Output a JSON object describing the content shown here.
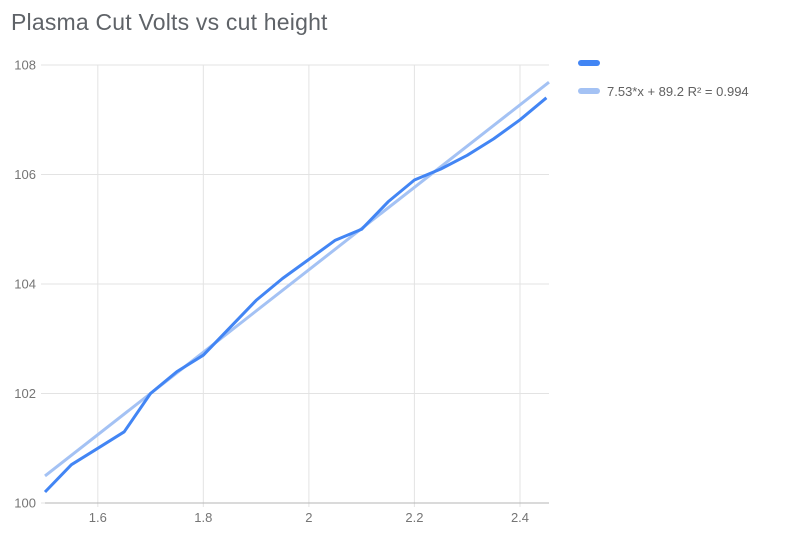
{
  "title": "Plasma Cut Volts vs cut height",
  "legend": {
    "series_label": "",
    "trendline_label": "7.53*x + 89.2 R² = 0.994"
  },
  "colors": {
    "series": "#4285f4",
    "trendline": "#a4c2f4",
    "gridline": "#e3e3e3",
    "axis_line": "#b5b5b5",
    "title_text": "#5f6368",
    "axis_text": "#757575",
    "legend_text": "#616161",
    "background": "#ffffff"
  },
  "chart_data": {
    "type": "line",
    "title": "Plasma Cut Volts vs cut height",
    "xlabel": "",
    "ylabel": "",
    "x": [
      1.5,
      1.55,
      1.6,
      1.65,
      1.7,
      1.75,
      1.8,
      1.85,
      1.9,
      1.95,
      2.0,
      2.05,
      2.1,
      2.15,
      2.2,
      2.25,
      2.3,
      2.35,
      2.4,
      2.45
    ],
    "series": [
      {
        "label": "",
        "values": [
          100.2,
          100.7,
          101.0,
          101.3,
          102.0,
          102.4,
          102.7,
          103.2,
          103.7,
          104.1,
          104.45,
          104.8,
          105.0,
          105.5,
          105.9,
          106.1,
          106.35,
          106.65,
          107.0,
          107.4
        ]
      }
    ],
    "trendline": {
      "slope": 7.53,
      "intercept": 89.2,
      "r_squared": 0.994,
      "label": "7.53*x + 89.2 R² = 0.994"
    },
    "xlim": [
      1.5,
      2.455
    ],
    "ylim": [
      100,
      108
    ],
    "x_ticks": [
      1.6,
      1.8,
      2.0,
      2.2,
      2.4
    ],
    "x_tick_labels": [
      "1.6",
      "1.8",
      "2",
      "2.2",
      "2.4"
    ],
    "y_ticks": [
      100,
      102,
      104,
      106,
      108
    ],
    "y_tick_labels": [
      "100",
      "102",
      "104",
      "106",
      "108"
    ],
    "grid": true,
    "legend_position": "top-right"
  }
}
